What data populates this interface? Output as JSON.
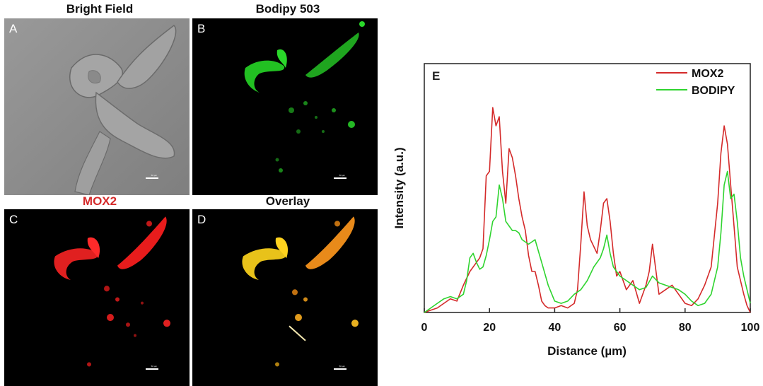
{
  "panels": [
    {
      "letter": "A",
      "title": "Bright Field",
      "scale_label": "50 µm"
    },
    {
      "letter": "B",
      "title": "Bodipy 503",
      "scale_label": "50 µm"
    },
    {
      "letter": "C",
      "title": "MOX2",
      "scale_label": "50 µm"
    },
    {
      "letter": "D",
      "title": "Overlay",
      "scale_label": "50 µm"
    }
  ],
  "colors": {
    "mox2": "#d42a2a",
    "bodipy": "#2fd42f",
    "overlay": "#f0a020"
  },
  "chart_data": {
    "type": "line",
    "panel_letter": "E",
    "xlabel": "Distance (µm)",
    "ylabel": "Intensity (a.u.)",
    "xlim": [
      0,
      100
    ],
    "xticks": [
      0,
      20,
      40,
      60,
      80,
      100
    ],
    "y_ticks_shown": false,
    "legend_position": "top-right",
    "grid": false,
    "series": [
      {
        "name": "MOX2",
        "color": "#d42a2a",
        "x": [
          0,
          2,
          4,
          6,
          8,
          10,
          12,
          14,
          16,
          17,
          18,
          19,
          20,
          21,
          22,
          23,
          24,
          25,
          26,
          27,
          28,
          29,
          30,
          31,
          32,
          33,
          34,
          35,
          36,
          37,
          38,
          40,
          42,
          44,
          46,
          47,
          48,
          49,
          50,
          51,
          52,
          53,
          54,
          55,
          56,
          57,
          58,
          59,
          60,
          62,
          64,
          66,
          68,
          69,
          70,
          72,
          74,
          76,
          78,
          80,
          82,
          84,
          86,
          88,
          90,
          91,
          92,
          93,
          94,
          95,
          96,
          97,
          98,
          99,
          100
        ],
        "y": [
          0,
          1,
          2,
          4,
          6,
          5,
          12,
          18,
          22,
          24,
          28,
          60,
          62,
          90,
          82,
          86,
          62,
          48,
          72,
          68,
          60,
          50,
          42,
          36,
          25,
          18,
          18,
          12,
          5,
          3,
          2,
          2,
          3,
          2,
          4,
          10,
          30,
          53,
          38,
          32,
          29,
          26,
          36,
          48,
          50,
          40,
          26,
          16,
          18,
          10,
          14,
          4,
          12,
          18,
          30,
          8,
          10,
          12,
          8,
          4,
          3,
          6,
          12,
          20,
          48,
          70,
          82,
          74,
          56,
          38,
          20,
          14,
          8,
          3,
          0
        ]
      },
      {
        "name": "BODIPY",
        "color": "#2fd42f",
        "x": [
          0,
          2,
          4,
          6,
          8,
          10,
          12,
          13,
          14,
          15,
          16,
          17,
          18,
          19,
          20,
          21,
          22,
          23,
          24,
          25,
          26,
          27,
          28,
          29,
          30,
          32,
          34,
          36,
          38,
          40,
          42,
          44,
          46,
          48,
          50,
          52,
          54,
          55,
          56,
          57,
          58,
          60,
          62,
          64,
          66,
          68,
          70,
          72,
          74,
          76,
          78,
          80,
          82,
          84,
          86,
          88,
          90,
          91,
          92,
          93,
          94,
          95,
          96,
          97,
          98,
          99,
          100
        ],
        "y": [
          0,
          2,
          4,
          6,
          7,
          6,
          8,
          14,
          24,
          26,
          22,
          19,
          20,
          25,
          32,
          40,
          42,
          56,
          50,
          40,
          38,
          36,
          36,
          35,
          32,
          30,
          32,
          22,
          12,
          5,
          4,
          5,
          8,
          10,
          14,
          20,
          24,
          28,
          34,
          26,
          20,
          16,
          14,
          12,
          10,
          11,
          16,
          13,
          12,
          11,
          10,
          8,
          5,
          3,
          4,
          8,
          20,
          35,
          56,
          62,
          50,
          52,
          40,
          24,
          16,
          10,
          4
        ]
      }
    ]
  }
}
